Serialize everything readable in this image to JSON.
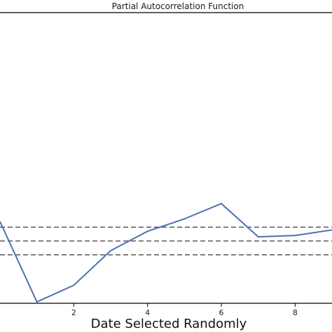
{
  "chart_data": {
    "type": "line",
    "title": "Partial Autocorrelation Function",
    "xlabel": "Date Selected Randomly",
    "ylabel": "",
    "x": [
      0,
      1,
      2,
      3,
      4,
      5,
      6,
      7,
      8,
      9
    ],
    "series": [
      {
        "values": [
          0.14,
          -0.44,
          -0.32,
          -0.07,
          0.07,
          0.16,
          0.27,
          0.03,
          0.04,
          0.08
        ]
      }
    ],
    "xticks": [
      "2",
      "4",
      "6",
      "8"
    ],
    "xtick_values": [
      2,
      4,
      6,
      8
    ],
    "xlim": [
      0,
      9
    ],
    "ylim": [
      -0.45,
      1.65
    ],
    "reference_lines": [
      0.1,
      0.0,
      -0.1
    ],
    "colors": {
      "series": "#4c72b0",
      "reference": "#4a4a4a",
      "axis": "#000000"
    },
    "grid": false,
    "legend": "none"
  }
}
